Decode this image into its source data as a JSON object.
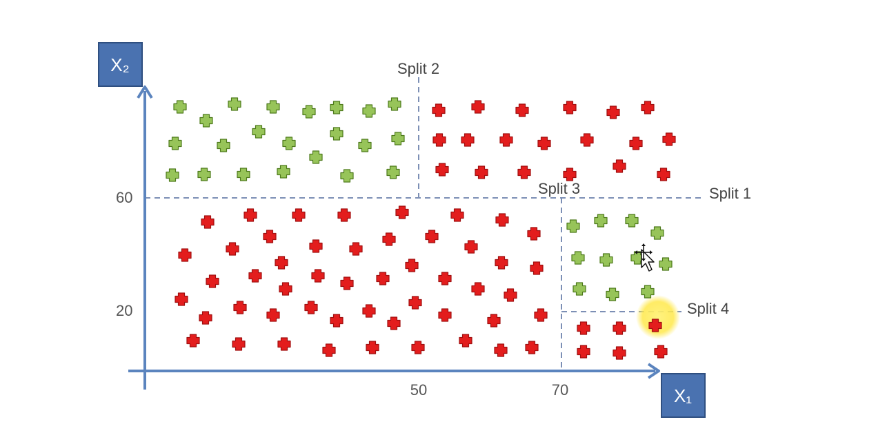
{
  "axes": {
    "x_label": "X₁",
    "y_label": "X₂",
    "x_ticks": [
      "50",
      "70"
    ],
    "y_ticks": [
      "60",
      "20"
    ]
  },
  "splits": [
    {
      "label": "Split 1",
      "feature": "X2",
      "threshold": 60
    },
    {
      "label": "Split 2",
      "feature": "X1",
      "threshold": 50
    },
    {
      "label": "Split 3",
      "feature": "X1",
      "threshold": 70
    },
    {
      "label": "Split 4",
      "feature": "X2",
      "threshold": 20
    }
  ],
  "colors": {
    "axis": "#5b84be",
    "axis_box": "#4a72b0",
    "axis_box_border": "#2f4f80",
    "dashed": "#7c8fb5",
    "green_plus": "#97c459",
    "green_stroke": "#4e7a1c",
    "red_plus": "#e31d1d",
    "red_stroke": "#a01010",
    "cursor_highlight": "#ffe84a"
  },
  "points": [
    {
      "c": "green",
      "x": 261,
      "y": 155
    },
    {
      "c": "green",
      "x": 299,
      "y": 175
    },
    {
      "c": "green",
      "x": 340,
      "y": 151
    },
    {
      "c": "green",
      "x": 396,
      "y": 155
    },
    {
      "c": "green",
      "x": 448,
      "y": 162
    },
    {
      "c": "green",
      "x": 488,
      "y": 156
    },
    {
      "c": "green",
      "x": 535,
      "y": 161
    },
    {
      "c": "green",
      "x": 572,
      "y": 151
    },
    {
      "c": "green",
      "x": 254,
      "y": 208
    },
    {
      "c": "green",
      "x": 324,
      "y": 211
    },
    {
      "c": "green",
      "x": 375,
      "y": 191
    },
    {
      "c": "green",
      "x": 419,
      "y": 208
    },
    {
      "c": "green",
      "x": 488,
      "y": 194
    },
    {
      "c": "green",
      "x": 529,
      "y": 211
    },
    {
      "c": "green",
      "x": 577,
      "y": 201
    },
    {
      "c": "green",
      "x": 458,
      "y": 228
    },
    {
      "c": "green",
      "x": 250,
      "y": 254
    },
    {
      "c": "green",
      "x": 296,
      "y": 253
    },
    {
      "c": "green",
      "x": 353,
      "y": 253
    },
    {
      "c": "green",
      "x": 411,
      "y": 249
    },
    {
      "c": "green",
      "x": 503,
      "y": 255
    },
    {
      "c": "green",
      "x": 570,
      "y": 250
    },
    {
      "c": "red",
      "x": 636,
      "y": 160
    },
    {
      "c": "red",
      "x": 693,
      "y": 155
    },
    {
      "c": "red",
      "x": 757,
      "y": 160
    },
    {
      "c": "red",
      "x": 826,
      "y": 156
    },
    {
      "c": "red",
      "x": 889,
      "y": 163
    },
    {
      "c": "red",
      "x": 939,
      "y": 156
    },
    {
      "c": "red",
      "x": 637,
      "y": 203
    },
    {
      "c": "red",
      "x": 678,
      "y": 203
    },
    {
      "c": "red",
      "x": 734,
      "y": 203
    },
    {
      "c": "red",
      "x": 789,
      "y": 208
    },
    {
      "c": "red",
      "x": 851,
      "y": 203
    },
    {
      "c": "red",
      "x": 922,
      "y": 208
    },
    {
      "c": "red",
      "x": 970,
      "y": 202
    },
    {
      "c": "red",
      "x": 641,
      "y": 246
    },
    {
      "c": "red",
      "x": 698,
      "y": 250
    },
    {
      "c": "red",
      "x": 760,
      "y": 250
    },
    {
      "c": "red",
      "x": 826,
      "y": 253
    },
    {
      "c": "red",
      "x": 898,
      "y": 241
    },
    {
      "c": "red",
      "x": 962,
      "y": 253
    },
    {
      "c": "red",
      "x": 301,
      "y": 322
    },
    {
      "c": "red",
      "x": 363,
      "y": 312
    },
    {
      "c": "red",
      "x": 433,
      "y": 312
    },
    {
      "c": "red",
      "x": 499,
      "y": 312
    },
    {
      "c": "red",
      "x": 583,
      "y": 308
    },
    {
      "c": "red",
      "x": 663,
      "y": 312
    },
    {
      "c": "red",
      "x": 728,
      "y": 319
    },
    {
      "c": "red",
      "x": 774,
      "y": 339
    },
    {
      "c": "red",
      "x": 268,
      "y": 370
    },
    {
      "c": "red",
      "x": 337,
      "y": 361
    },
    {
      "c": "red",
      "x": 391,
      "y": 343
    },
    {
      "c": "red",
      "x": 458,
      "y": 357
    },
    {
      "c": "red",
      "x": 516,
      "y": 361
    },
    {
      "c": "red",
      "x": 564,
      "y": 347
    },
    {
      "c": "red",
      "x": 626,
      "y": 343
    },
    {
      "c": "red",
      "x": 683,
      "y": 358
    },
    {
      "c": "red",
      "x": 308,
      "y": 408
    },
    {
      "c": "red",
      "x": 370,
      "y": 400
    },
    {
      "c": "red",
      "x": 408,
      "y": 381
    },
    {
      "c": "red",
      "x": 461,
      "y": 400
    },
    {
      "c": "red",
      "x": 503,
      "y": 411
    },
    {
      "c": "red",
      "x": 555,
      "y": 404
    },
    {
      "c": "red",
      "x": 597,
      "y": 385
    },
    {
      "c": "red",
      "x": 645,
      "y": 404
    },
    {
      "c": "red",
      "x": 727,
      "y": 381
    },
    {
      "c": "red",
      "x": 778,
      "y": 389
    },
    {
      "c": "red",
      "x": 263,
      "y": 434
    },
    {
      "c": "red",
      "x": 414,
      "y": 419
    },
    {
      "c": "red",
      "x": 348,
      "y": 446
    },
    {
      "c": "red",
      "x": 451,
      "y": 446
    },
    {
      "c": "red",
      "x": 535,
      "y": 451
    },
    {
      "c": "red",
      "x": 602,
      "y": 439
    },
    {
      "c": "red",
      "x": 693,
      "y": 419
    },
    {
      "c": "red",
      "x": 740,
      "y": 428
    },
    {
      "c": "red",
      "x": 298,
      "y": 461
    },
    {
      "c": "red",
      "x": 396,
      "y": 457
    },
    {
      "c": "red",
      "x": 488,
      "y": 465
    },
    {
      "c": "red",
      "x": 571,
      "y": 469
    },
    {
      "c": "red",
      "x": 645,
      "y": 457
    },
    {
      "c": "red",
      "x": 716,
      "y": 465
    },
    {
      "c": "red",
      "x": 784,
      "y": 457
    },
    {
      "c": "red",
      "x": 280,
      "y": 494
    },
    {
      "c": "red",
      "x": 346,
      "y": 499
    },
    {
      "c": "red",
      "x": 412,
      "y": 499
    },
    {
      "c": "red",
      "x": 477,
      "y": 508
    },
    {
      "c": "red",
      "x": 540,
      "y": 504
    },
    {
      "c": "red",
      "x": 606,
      "y": 504
    },
    {
      "c": "red",
      "x": 675,
      "y": 494
    },
    {
      "c": "red",
      "x": 726,
      "y": 508
    },
    {
      "c": "red",
      "x": 771,
      "y": 504
    },
    {
      "c": "green",
      "x": 831,
      "y": 328
    },
    {
      "c": "green",
      "x": 871,
      "y": 320
    },
    {
      "c": "green",
      "x": 916,
      "y": 320
    },
    {
      "c": "green",
      "x": 953,
      "y": 338
    },
    {
      "c": "green",
      "x": 838,
      "y": 374
    },
    {
      "c": "green",
      "x": 879,
      "y": 377
    },
    {
      "c": "green",
      "x": 924,
      "y": 374
    },
    {
      "c": "green",
      "x": 965,
      "y": 383
    },
    {
      "c": "green",
      "x": 840,
      "y": 419
    },
    {
      "c": "green",
      "x": 888,
      "y": 427
    },
    {
      "c": "green",
      "x": 939,
      "y": 423
    },
    {
      "c": "red",
      "x": 846,
      "y": 476
    },
    {
      "c": "red",
      "x": 898,
      "y": 476
    },
    {
      "c": "red",
      "x": 950,
      "y": 472
    },
    {
      "c": "red",
      "x": 846,
      "y": 510
    },
    {
      "c": "red",
      "x": 898,
      "y": 512
    },
    {
      "c": "red",
      "x": 958,
      "y": 510
    }
  ]
}
